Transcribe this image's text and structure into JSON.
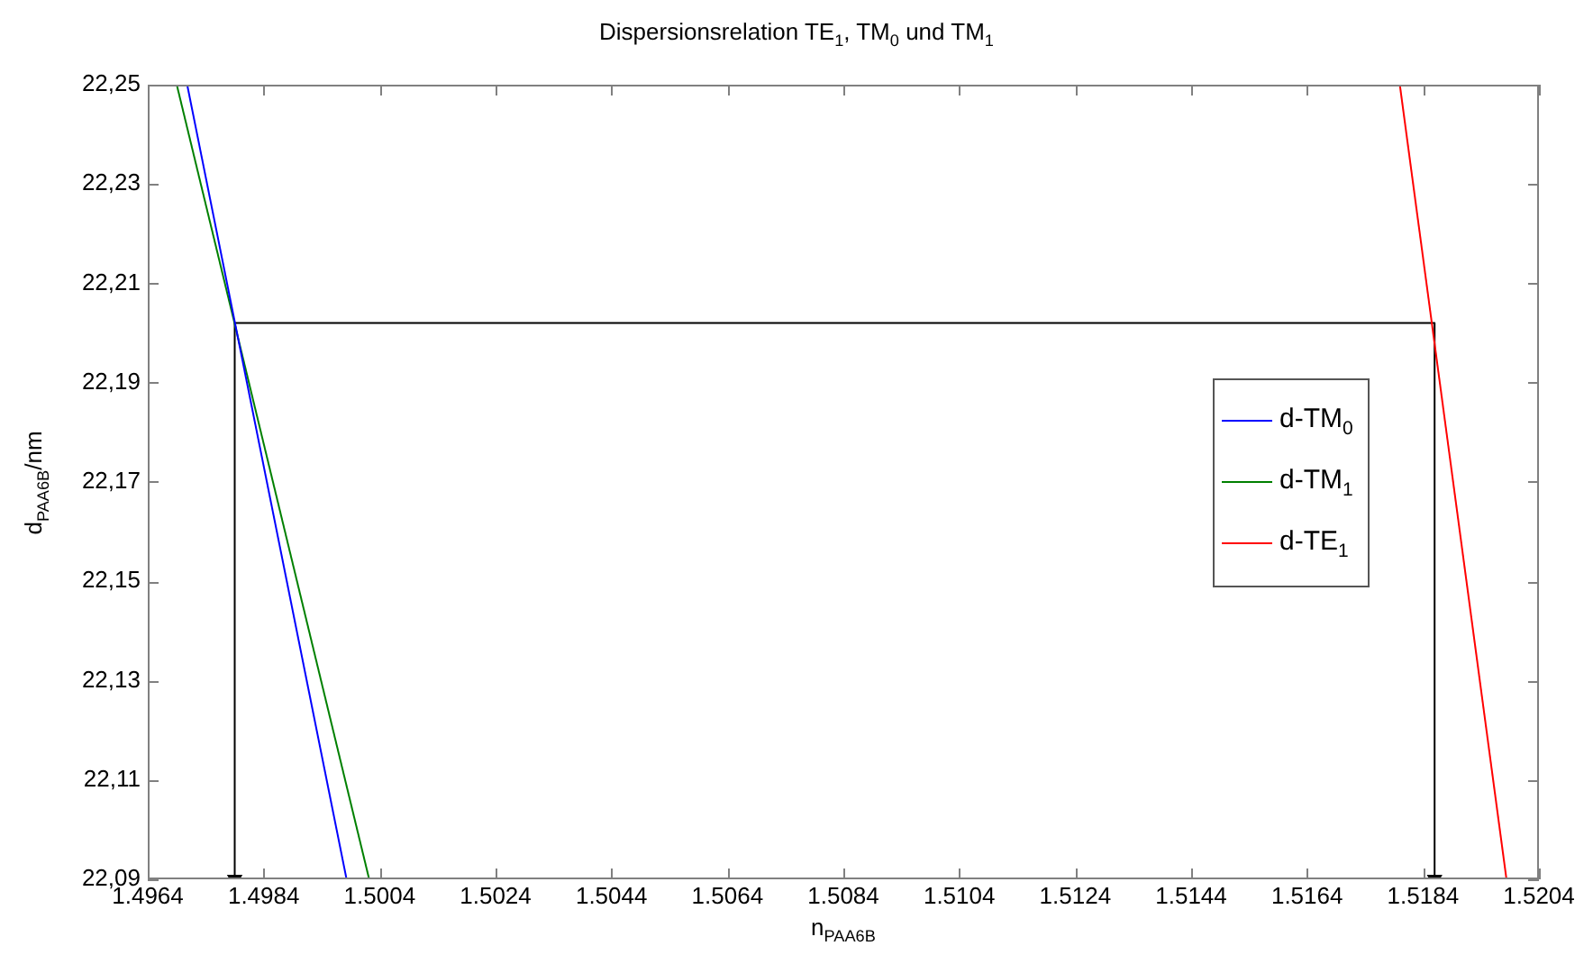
{
  "chart_data": {
    "type": "line",
    "title": "Dispersionsrelation TE$_{1}$, TM$_{0}$ und TM$_{1}$",
    "xlabel": "n$_{PAA6B}$",
    "ylabel": "d$_{PAA6B}$/nm",
    "xlim": [
      1.4964,
      1.5204
    ],
    "xticks": [
      1.4964,
      1.4984,
      1.5004,
      1.5024,
      1.5044,
      1.5064,
      1.5084,
      1.5104,
      1.5124,
      1.5144,
      1.5164,
      1.5184,
      1.5204
    ],
    "ylim": [
      22.09,
      22.25
    ],
    "yticks": [
      {
        "value": 22.09,
        "label": "22,09"
      },
      {
        "value": 22.11,
        "label": "22,11"
      },
      {
        "value": 22.13,
        "label": "22,13"
      },
      {
        "value": 22.15,
        "label": "22,15"
      },
      {
        "value": 22.17,
        "label": "22,17"
      },
      {
        "value": 22.19,
        "label": "22,19"
      },
      {
        "value": 22.21,
        "label": "22,21"
      },
      {
        "value": 22.23,
        "label": "22,23"
      },
      {
        "value": 22.25,
        "label": "22,25"
      }
    ],
    "grid": false,
    "legend": "right",
    "marker": "none",
    "line_style": "solid",
    "series": [
      {
        "name": "d-TM$_{0}$",
        "color": "#0000ff",
        "x": [
          1.49708,
          1.49983
        ],
        "values": [
          22.25,
          22.09
        ]
      },
      {
        "name": "d-TM$_{1}$",
        "color": "#008000",
        "x": [
          1.4969,
          1.50022
        ],
        "values": [
          22.25,
          22.09
        ]
      },
      {
        "name": "d-TE$_{1}$",
        "color": "#ff0000",
        "x": [
          1.518,
          1.51984
        ],
        "values": [
          22.25,
          22.09
        ]
      },
      {
        "color": "#000000",
        "marker": "triangle",
        "x": [
          1.4979,
          1.4979,
          1.5186,
          1.5186
        ],
        "values": [
          22.09,
          22.202,
          22.202,
          22.09
        ]
      }
    ]
  }
}
